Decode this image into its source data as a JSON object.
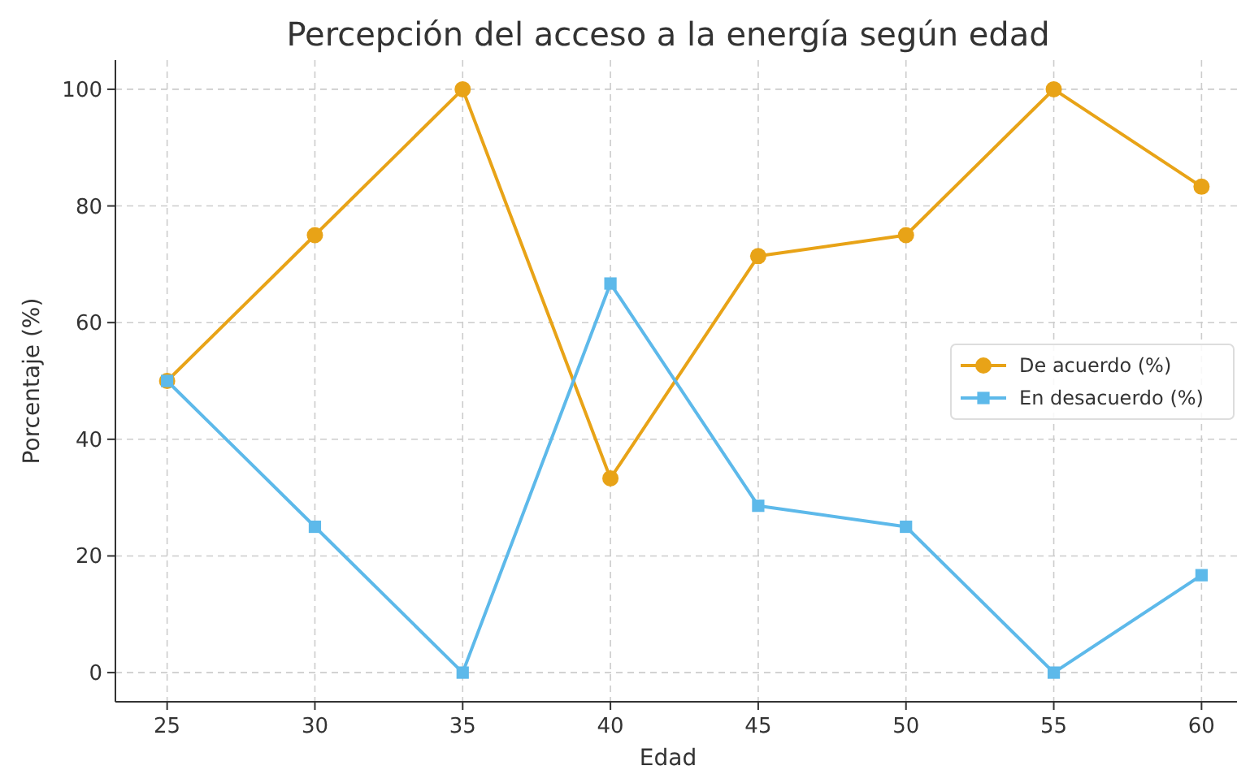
{
  "chart_data": {
    "type": "line",
    "title": "Percepción del acceso a la energía según edad",
    "xlabel": "Edad",
    "ylabel": "Porcentaje (%)",
    "x": [
      25,
      30,
      35,
      40,
      45,
      50,
      55,
      60
    ],
    "series": [
      {
        "name": "De acuerdo (%)",
        "color": "#e8a317",
        "marker": "circle",
        "values": [
          50,
          75,
          100,
          33.3,
          71.4,
          75,
          100,
          83.3
        ]
      },
      {
        "name": "En desacuerdo (%)",
        "color": "#5db9ea",
        "marker": "square",
        "values": [
          50,
          25,
          0,
          66.7,
          28.6,
          25,
          0,
          16.7
        ]
      }
    ],
    "xlim": [
      23.25,
      61.2
    ],
    "xticks": [
      25,
      30,
      35,
      40,
      45,
      50,
      55,
      60
    ],
    "ylim": [
      -5,
      105
    ],
    "yticks": [
      0,
      20,
      40,
      60,
      80,
      100
    ],
    "grid": true,
    "legend": "right",
    "line_style": "solid"
  }
}
